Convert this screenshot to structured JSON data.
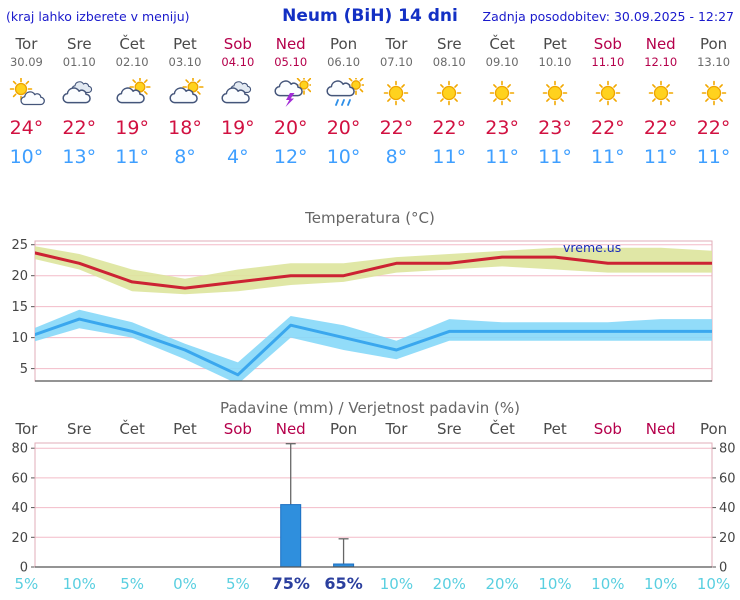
{
  "header": {
    "hint": "(kraj lahko izberete v meniju)",
    "title": "Neum (BiH) 14 dni",
    "updated": "Zadnja posodobitev: 30.09.2025 - 12:27"
  },
  "colors": {
    "header_blue": "#1a1acc",
    "title_blue": "#1330c4",
    "weekend_red": "#b5004b",
    "tmax_red": "#d11141",
    "tmin_blue": "#3f9fff",
    "prob_cyan": "#59cfe0",
    "prob_strong_navy": "#2b3f9e",
    "grid_pink": "#f3bcc8",
    "bar_blue": "#2f8fdd",
    "tmax_band": "#dde49c",
    "tmin_band": "#86d8f8"
  },
  "days": [
    {
      "name": "Tor",
      "date": "30.09",
      "weekend": false,
      "icon": "mostly-sunny",
      "tmax": "24°",
      "tmin": "10°",
      "precip_prob": "5%",
      "prob_high": false
    },
    {
      "name": "Sre",
      "date": "01.10",
      "weekend": false,
      "icon": "cloudy",
      "tmax": "22°",
      "tmin": "13°",
      "precip_prob": "10%",
      "prob_high": false
    },
    {
      "name": "Čet",
      "date": "02.10",
      "weekend": false,
      "icon": "partly-cloudy",
      "tmax": "19°",
      "tmin": "11°",
      "precip_prob": "5%",
      "prob_high": false
    },
    {
      "name": "Pet",
      "date": "03.10",
      "weekend": false,
      "icon": "partly-cloudy",
      "tmax": "18°",
      "tmin": "8°",
      "precip_prob": "0%",
      "prob_high": false
    },
    {
      "name": "Sob",
      "date": "04.10",
      "weekend": true,
      "icon": "cloudy",
      "tmax": "19°",
      "tmin": "4°",
      "precip_prob": "5%",
      "prob_high": false
    },
    {
      "name": "Ned",
      "date": "05.10",
      "weekend": true,
      "icon": "thunderstorm",
      "tmax": "20°",
      "tmin": "12°",
      "precip_prob": "75%",
      "prob_high": true
    },
    {
      "name": "Pon",
      "date": "06.10",
      "weekend": false,
      "icon": "rain-sun",
      "tmax": "20°",
      "tmin": "10°",
      "precip_prob": "65%",
      "prob_high": true
    },
    {
      "name": "Tor",
      "date": "07.10",
      "weekend": false,
      "icon": "sunny",
      "tmax": "22°",
      "tmin": "8°",
      "precip_prob": "10%",
      "prob_high": false
    },
    {
      "name": "Sre",
      "date": "08.10",
      "weekend": false,
      "icon": "sunny",
      "tmax": "22°",
      "tmin": "11°",
      "precip_prob": "20%",
      "prob_high": false
    },
    {
      "name": "Čet",
      "date": "09.10",
      "weekend": false,
      "icon": "sunny",
      "tmax": "23°",
      "tmin": "11°",
      "precip_prob": "20%",
      "prob_high": false
    },
    {
      "name": "Pet",
      "date": "10.10",
      "weekend": false,
      "icon": "sunny",
      "tmax": "23°",
      "tmin": "11°",
      "precip_prob": "10%",
      "prob_high": false
    },
    {
      "name": "Sob",
      "date": "11.10",
      "weekend": true,
      "icon": "sunny",
      "tmax": "22°",
      "tmin": "11°",
      "precip_prob": "10%",
      "prob_high": false
    },
    {
      "name": "Ned",
      "date": "12.10",
      "weekend": true,
      "icon": "sunny",
      "tmax": "22°",
      "tmin": "11°",
      "precip_prob": "10%",
      "prob_high": false
    },
    {
      "name": "Pon",
      "date": "13.10",
      "weekend": false,
      "icon": "sunny",
      "tmax": "22°",
      "tmin": "11°",
      "precip_prob": "10%",
      "prob_high": false
    }
  ],
  "chart_data": [
    {
      "type": "line",
      "title": "Temperatura (°C)",
      "watermark": "vreme.us",
      "ylim": [
        3.0,
        25.6
      ],
      "yticks": [
        5,
        10,
        15,
        20,
        25
      ],
      "categories": [
        "Tor",
        "Sre",
        "Čet",
        "Pet",
        "Sob",
        "Ned",
        "Pon",
        "Tor",
        "Sre",
        "Čet",
        "Pet",
        "Sob",
        "Ned",
        "Pon"
      ],
      "series": [
        {
          "name": "max-temperature",
          "line_color": "#cc2233",
          "band_color": "#dde49c",
          "values": [
            24,
            22,
            19,
            18,
            19,
            20,
            20,
            22,
            22,
            23,
            23,
            22,
            22,
            22
          ],
          "upper": [
            25,
            23.5,
            21,
            19.5,
            21,
            22,
            22,
            23,
            23.5,
            24,
            24.5,
            24.5,
            24.5,
            24
          ],
          "lower": [
            23,
            21,
            17.5,
            17,
            17.5,
            18.5,
            19,
            20.5,
            21,
            21.5,
            21,
            20.5,
            20.5,
            20.5
          ]
        },
        {
          "name": "min-temperature",
          "line_color": "#3aa7ee",
          "band_color": "#86d8f8",
          "values": [
            10,
            13,
            11,
            8,
            4,
            12,
            10,
            8,
            11,
            11,
            11,
            11,
            11,
            11
          ],
          "upper": [
            11,
            14.5,
            12.5,
            9,
            6,
            13.5,
            12,
            9.5,
            13,
            12.5,
            12.5,
            12.5,
            13,
            13
          ],
          "lower": [
            9,
            11.5,
            10,
            6.5,
            2.5,
            10,
            8,
            6.5,
            9.5,
            9.5,
            9.5,
            9.5,
            9.5,
            9.5
          ]
        }
      ],
      "legend": false,
      "grid": true
    },
    {
      "type": "bar",
      "title": "Padavine (mm) / Verjetnost padavin (%)",
      "ylim": [
        0,
        83.5
      ],
      "yticks": [
        0,
        20,
        40,
        60,
        80
      ],
      "categories": [
        "Tor",
        "Sre",
        "Čet",
        "Pet",
        "Sob",
        "Ned",
        "Pon",
        "Tor",
        "Sre",
        "Čet",
        "Pet",
        "Sob",
        "Ned",
        "Pon"
      ],
      "values": [
        0,
        0,
        0,
        0,
        0,
        42,
        2,
        0,
        0,
        0,
        0,
        0,
        0,
        0
      ],
      "range_max": [
        0,
        0,
        0,
        0,
        0,
        83,
        19,
        0,
        0,
        0,
        0,
        0,
        0,
        0
      ],
      "probabilities": [
        "5%",
        "10%",
        "5%",
        "0%",
        "5%",
        "75%",
        "65%",
        "10%",
        "20%",
        "20%",
        "10%",
        "10%",
        "10%",
        "10%"
      ],
      "bar_color": "#2f8fdd",
      "grid": true
    }
  ]
}
